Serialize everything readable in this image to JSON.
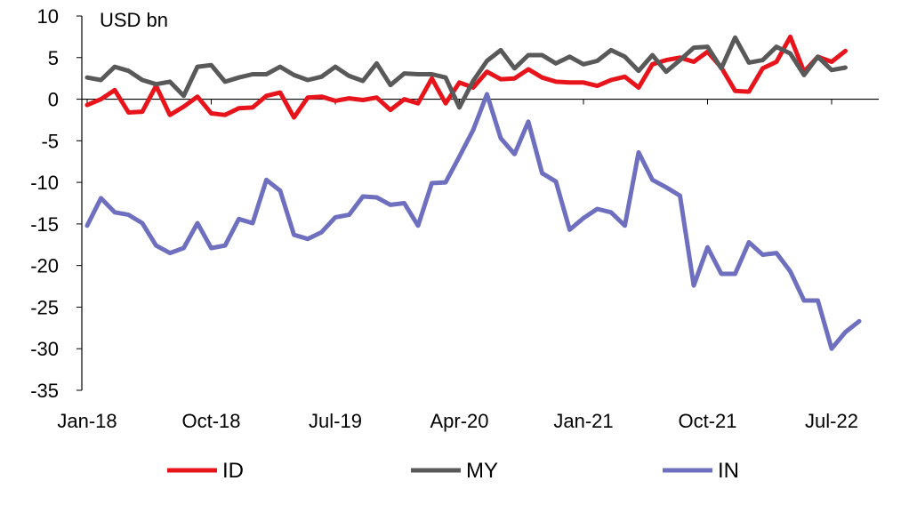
{
  "chart_data": {
    "type": "line",
    "unit_label": "USD bn",
    "ylim": [
      -35,
      10
    ],
    "y_ticks": [
      10,
      5,
      0,
      -5,
      -10,
      -15,
      -20,
      -25,
      -30,
      -35
    ],
    "x_tick_labels": [
      "Jan-18",
      "Oct-18",
      "Jul-19",
      "Apr-20",
      "Jan-21",
      "Oct-21",
      "Jul-22"
    ],
    "x_tick_indices": [
      0,
      9,
      18,
      27,
      36,
      45,
      54
    ],
    "x_count": 57,
    "grid": false,
    "legend_position": "bottom",
    "series": [
      {
        "name": "ID",
        "color": "#e8141c",
        "values": [
          -0.7,
          0.0,
          1.1,
          -1.6,
          -1.5,
          1.6,
          -1.9,
          -0.9,
          0.3,
          -1.7,
          -1.9,
          -1.1,
          -1.0,
          0.4,
          0.8,
          -2.2,
          0.2,
          0.3,
          -0.2,
          0.1,
          -0.1,
          0.2,
          -1.3,
          0.0,
          -0.5,
          2.5,
          -0.5,
          2.0,
          1.4,
          3.3,
          2.4,
          2.5,
          3.6,
          2.6,
          2.1,
          2.0,
          2.0,
          1.6,
          2.3,
          2.7,
          1.4,
          4.2,
          4.7,
          5.0,
          4.5,
          5.7,
          3.8,
          1.0,
          0.9,
          3.7,
          4.5,
          7.5,
          3.3,
          5.1,
          4.5,
          5.8
        ]
      },
      {
        "name": "MY",
        "color": "#595959",
        "values": [
          2.6,
          2.3,
          3.9,
          3.4,
          2.3,
          1.8,
          2.1,
          0.4,
          3.9,
          4.1,
          2.1,
          2.6,
          3.0,
          3.0,
          3.9,
          2.9,
          2.3,
          2.7,
          3.9,
          2.8,
          2.2,
          4.3,
          1.7,
          3.1,
          3.0,
          3.0,
          2.6,
          -1.0,
          2.2,
          4.6,
          5.9,
          3.7,
          5.3,
          5.3,
          4.3,
          5.1,
          4.2,
          4.6,
          5.9,
          5.1,
          3.4,
          5.3,
          3.3,
          4.7,
          6.2,
          6.3,
          3.7,
          7.4,
          4.4,
          4.7,
          6.3,
          5.5,
          2.9,
          5.1,
          3.5,
          3.8
        ]
      },
      {
        "name": "IN",
        "color": "#6f6fc0",
        "values": [
          -15.2,
          -11.9,
          -13.6,
          -13.9,
          -14.9,
          -17.6,
          -18.5,
          -17.9,
          -14.9,
          -17.9,
          -17.6,
          -14.4,
          -14.9,
          -9.7,
          -11.0,
          -16.3,
          -16.8,
          -16.0,
          -14.2,
          -13.9,
          -11.7,
          -11.8,
          -12.7,
          -12.5,
          -15.2,
          -10.1,
          -10.0,
          -6.9,
          -3.7,
          0.6,
          -4.7,
          -6.6,
          -2.7,
          -8.9,
          -9.9,
          -15.7,
          -14.3,
          -13.2,
          -13.6,
          -15.2,
          -6.4,
          -9.7,
          -10.6,
          -11.6,
          -22.4,
          -17.8,
          -21.0,
          -21.0,
          -17.2,
          -18.7,
          -18.5,
          -20.7,
          -24.2,
          -24.2,
          -30.0,
          -28.0,
          -26.7
        ]
      }
    ]
  }
}
